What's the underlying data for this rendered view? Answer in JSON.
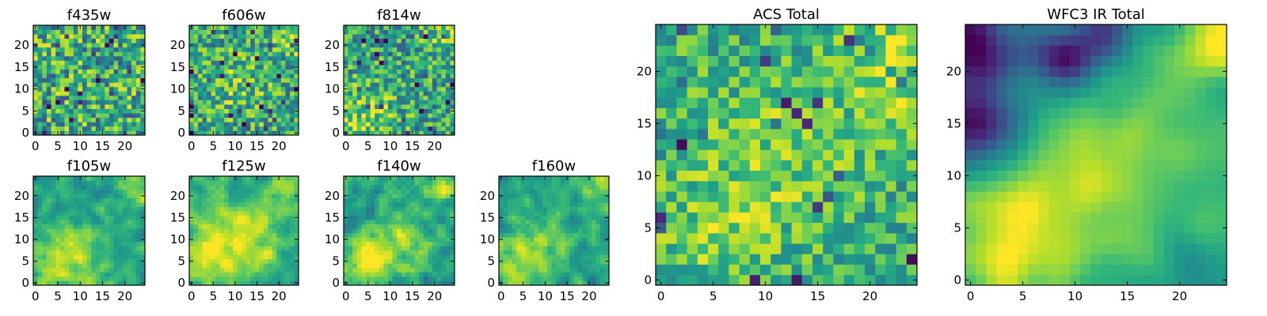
{
  "figure": {
    "colormap": "viridis",
    "colormap_stops": [
      "#440154",
      "#482878",
      "#3e4989",
      "#31688e",
      "#26828e",
      "#1f9e89",
      "#35b779",
      "#6ece58",
      "#b5de2b",
      "#fde725"
    ]
  },
  "chart_data": [
    {
      "id": "f435w",
      "type": "heatmap",
      "title": "f435w",
      "grid": [
        25,
        25
      ],
      "xlim": [
        0,
        24
      ],
      "ylim": [
        0,
        24
      ],
      "xticks": [
        "0",
        "5",
        "10",
        "15",
        "20"
      ],
      "yticks": [
        "0",
        "5",
        "10",
        "15",
        "20"
      ],
      "texture": "noisy",
      "mean": 0.62,
      "spread": 0.34,
      "seed": 11,
      "hotspots": []
    },
    {
      "id": "f606w",
      "type": "heatmap",
      "title": "f606w",
      "grid": [
        25,
        25
      ],
      "xlim": [
        0,
        24
      ],
      "ylim": [
        0,
        24
      ],
      "xticks": [
        "0",
        "5",
        "10",
        "15",
        "20"
      ],
      "yticks": [
        "0",
        "5",
        "10",
        "15",
        "20"
      ],
      "texture": "noisy",
      "mean": 0.6,
      "spread": 0.3,
      "seed": 23,
      "hotspots": [
        {
          "x": 10,
          "y": 11,
          "r": 5,
          "a": 0.15
        },
        {
          "x": 23,
          "y": 22,
          "r": 3,
          "a": 0.2
        }
      ]
    },
    {
      "id": "f814w",
      "type": "heatmap",
      "title": "f814w",
      "grid": [
        25,
        25
      ],
      "xlim": [
        0,
        24
      ],
      "ylim": [
        0,
        24
      ],
      "xticks": [
        "0",
        "5",
        "10",
        "15",
        "20"
      ],
      "yticks": [
        "0",
        "5",
        "10",
        "15",
        "20"
      ],
      "texture": "noisy",
      "mean": 0.58,
      "spread": 0.3,
      "seed": 37,
      "hotspots": [
        {
          "x": 4,
          "y": 3,
          "r": 5,
          "a": 0.25
        },
        {
          "x": 23,
          "y": 21,
          "r": 3,
          "a": 0.25
        }
      ]
    },
    {
      "id": "f105w",
      "type": "heatmap",
      "title": "f105w",
      "grid": [
        25,
        25
      ],
      "xlim": [
        0,
        24
      ],
      "ylim": [
        0,
        24
      ],
      "xticks": [
        "0",
        "5",
        "10",
        "15",
        "20"
      ],
      "yticks": [
        "0",
        "5",
        "10",
        "15",
        "20"
      ],
      "texture": "patchy",
      "mean": 0.58,
      "spread": 0.22,
      "seed": 41,
      "hotspots": [
        {
          "x": 4,
          "y": 4,
          "r": 5,
          "a": 0.3
        },
        {
          "x": 11,
          "y": 8,
          "r": 5,
          "a": 0.2
        },
        {
          "x": 23,
          "y": 22,
          "r": 3,
          "a": 0.2
        }
      ]
    },
    {
      "id": "f125w",
      "type": "heatmap",
      "title": "f125w",
      "grid": [
        25,
        25
      ],
      "xlim": [
        0,
        24
      ],
      "ylim": [
        0,
        24
      ],
      "xticks": [
        "0",
        "5",
        "10",
        "15",
        "20"
      ],
      "yticks": [
        "0",
        "5",
        "10",
        "15",
        "20"
      ],
      "texture": "patchy",
      "mean": 0.64,
      "spread": 0.2,
      "seed": 53,
      "hotspots": [
        {
          "x": 6,
          "y": 6,
          "r": 6,
          "a": 0.25
        },
        {
          "x": 14,
          "y": 12,
          "r": 5,
          "a": 0.2
        },
        {
          "x": 23,
          "y": 22,
          "r": 3,
          "a": 0.25
        }
      ]
    },
    {
      "id": "f140w",
      "type": "heatmap",
      "title": "f140w",
      "grid": [
        25,
        25
      ],
      "xlim": [
        0,
        24
      ],
      "ylim": [
        0,
        24
      ],
      "xticks": [
        "0",
        "5",
        "10",
        "15",
        "20"
      ],
      "yticks": [
        "0",
        "5",
        "10",
        "15",
        "20"
      ],
      "texture": "patchy",
      "mean": 0.57,
      "spread": 0.24,
      "seed": 67,
      "hotspots": [
        {
          "x": 4,
          "y": 4,
          "r": 5,
          "a": 0.3
        },
        {
          "x": 12,
          "y": 10,
          "r": 5,
          "a": 0.2
        },
        {
          "x": 23,
          "y": 22,
          "r": 3,
          "a": 0.25
        }
      ]
    },
    {
      "id": "f160w",
      "type": "heatmap",
      "title": "f160w",
      "grid": [
        25,
        25
      ],
      "xlim": [
        0,
        24
      ],
      "ylim": [
        0,
        24
      ],
      "xticks": [
        "0",
        "5",
        "10",
        "15",
        "20"
      ],
      "yticks": [
        "0",
        "5",
        "10",
        "15",
        "20"
      ],
      "texture": "patchy",
      "mean": 0.55,
      "spread": 0.22,
      "seed": 79,
      "hotspots": [
        {
          "x": 3,
          "y": 3,
          "r": 5,
          "a": 0.3
        },
        {
          "x": 10,
          "y": 10,
          "r": 5,
          "a": 0.2
        },
        {
          "x": 23,
          "y": 22,
          "r": 3,
          "a": 0.25
        }
      ]
    },
    {
      "id": "acs-total",
      "type": "heatmap",
      "title": "ACS Total",
      "grid": [
        25,
        25
      ],
      "xlim": [
        0,
        24
      ],
      "ylim": [
        0,
        24
      ],
      "xticks": [
        "0",
        "5",
        "10",
        "15",
        "20"
      ],
      "yticks": [
        "0",
        "5",
        "10",
        "15",
        "20"
      ],
      "texture": "noisy",
      "mean": 0.62,
      "spread": 0.22,
      "seed": 97,
      "hotspots": [
        {
          "x": 11,
          "y": 12,
          "r": 6,
          "a": 0.15
        },
        {
          "x": 23,
          "y": 21,
          "r": 4,
          "a": 0.25
        },
        {
          "x": 5,
          "y": 4,
          "r": 4,
          "a": 0.15
        }
      ]
    },
    {
      "id": "wfc3-ir-total",
      "type": "heatmap",
      "title": "WFC3 IR Total",
      "grid": [
        25,
        25
      ],
      "xlim": [
        0,
        24
      ],
      "ylim": [
        0,
        24
      ],
      "xticks": [
        "0",
        "5",
        "10",
        "15",
        "20"
      ],
      "yticks": [
        "0",
        "5",
        "10",
        "15",
        "20"
      ],
      "texture": "smooth",
      "mean": 0.58,
      "spread": 0.16,
      "seed": 113,
      "hotspots": [
        {
          "x": 4,
          "y": 4,
          "r": 5,
          "a": 0.35
        },
        {
          "x": 13,
          "y": 10,
          "r": 6,
          "a": 0.25
        },
        {
          "x": 23,
          "y": 22,
          "r": 4,
          "a": 0.3
        },
        {
          "x": 1,
          "y": 23,
          "r": 3,
          "a": -0.55
        },
        {
          "x": 1,
          "y": 15,
          "r": 3,
          "a": -0.45
        },
        {
          "x": 9,
          "y": 21,
          "r": 2,
          "a": -0.45
        },
        {
          "x": 13,
          "y": 24,
          "r": 2,
          "a": -0.5
        }
      ]
    }
  ]
}
